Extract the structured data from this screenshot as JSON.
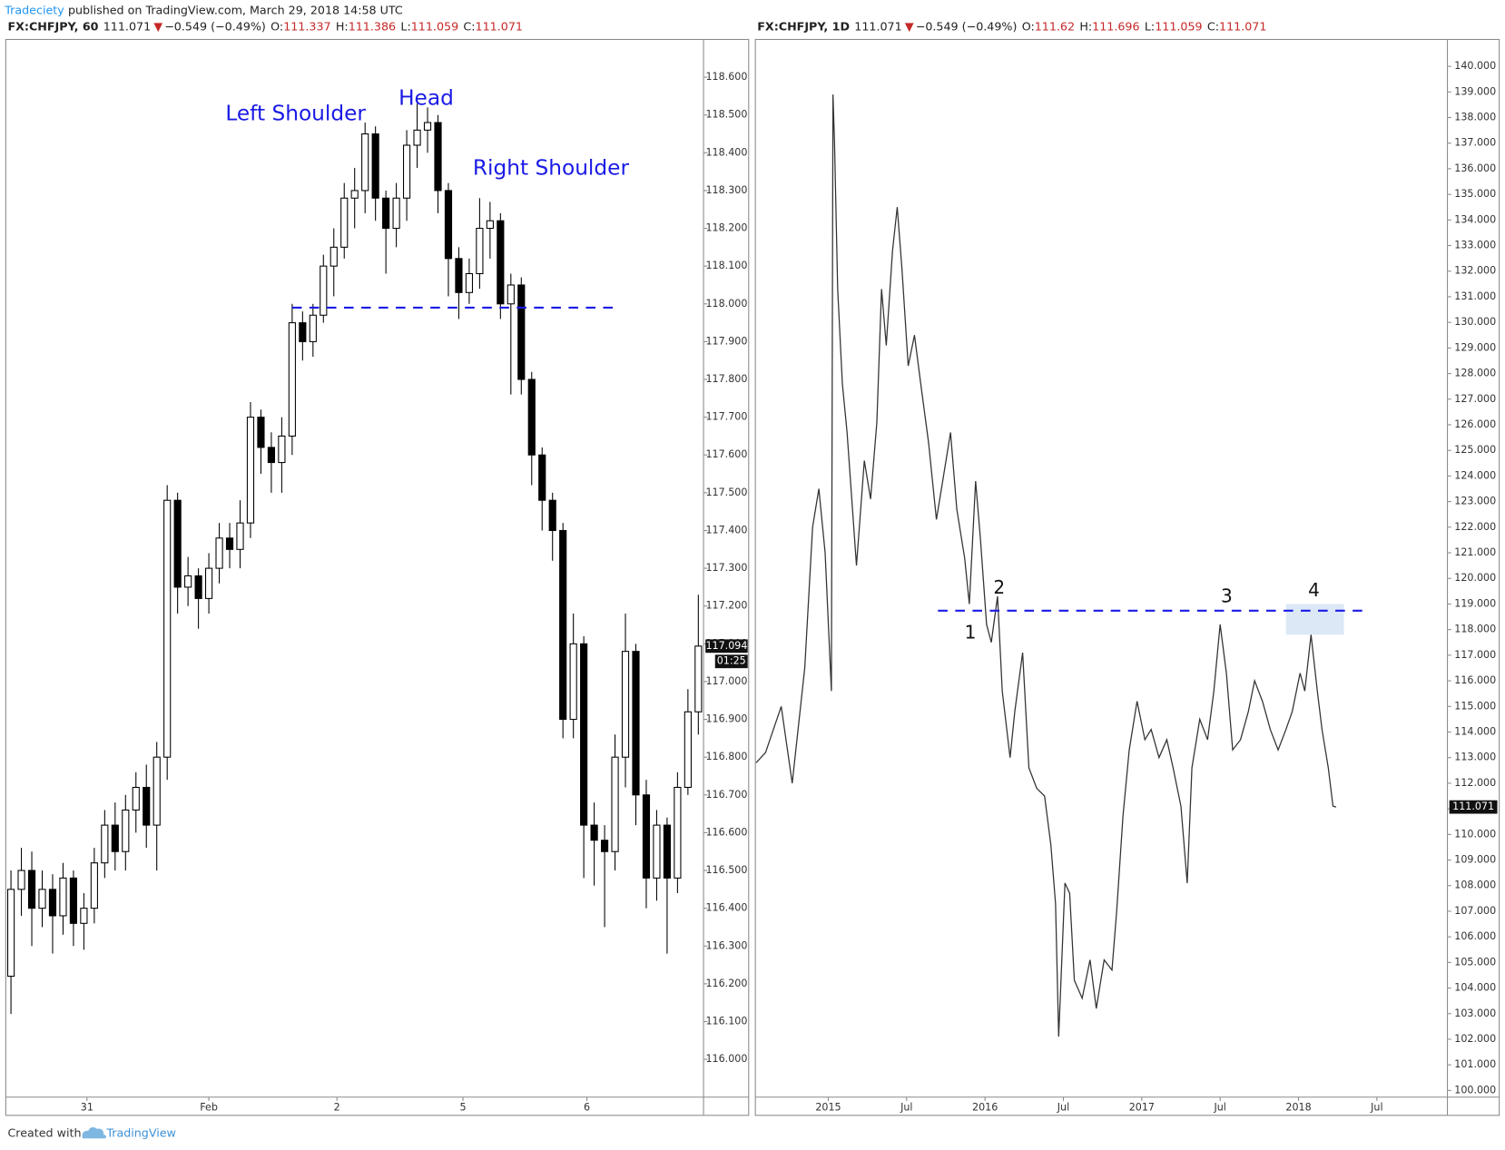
{
  "header": {
    "author": "Tradeciety",
    "text": "published on TradingView.com, March 29, 2018 14:58 UTC"
  },
  "footer": {
    "text": "Created with",
    "brand": "TradingView"
  },
  "chart_data": [
    {
      "type": "candlestick",
      "legend": {
        "symbol": "FX:CHFJPY, 60",
        "price": "111.071",
        "direction": "▼",
        "change": "−0.549 (−0.49%)",
        "ohlc": [
          {
            "label": "O:",
            "value": 111.337
          },
          {
            "label": "H:",
            "value": 111.386
          },
          {
            "label": "L:",
            "value": 111.059
          },
          {
            "label": "C:",
            "value": 111.071
          }
        ]
      },
      "annotations": [
        "Left Shoulder",
        "Head",
        "Right Shoulder"
      ],
      "neckline": {
        "value": 117.99,
        "x": [
          27,
          58
        ]
      },
      "countdown": "01:25",
      "xlim": [
        -0.5,
        66.5
      ],
      "xticks": [
        {
          "value": 7.3,
          "label": "31"
        },
        {
          "value": 19.0,
          "label": "Feb"
        },
        {
          "value": 31.3,
          "label": "2"
        },
        {
          "value": 43.4,
          "label": "5"
        },
        {
          "value": 55.3,
          "label": "6"
        }
      ],
      "ylim": [
        115.9,
        118.7
      ],
      "yticks": [
        {
          "value": 116.0,
          "label": "116.000"
        },
        {
          "value": 116.1,
          "label": "116.100"
        },
        {
          "value": 116.2,
          "label": "116.200"
        },
        {
          "value": 116.3,
          "label": "116.300"
        },
        {
          "value": 116.4,
          "label": "116.400"
        },
        {
          "value": 116.5,
          "label": "116.500"
        },
        {
          "value": 116.6,
          "label": "116.600"
        },
        {
          "value": 116.7,
          "label": "116.700"
        },
        {
          "value": 116.8,
          "label": "116.800"
        },
        {
          "value": 116.9,
          "label": "116.900"
        },
        {
          "value": 117.0,
          "label": "117.000"
        },
        {
          "value": 117.1,
          "label": "117.100"
        },
        {
          "value": 117.2,
          "label": "117.200"
        },
        {
          "value": 117.3,
          "label": "117.300"
        },
        {
          "value": 117.4,
          "label": "117.400"
        },
        {
          "value": 117.5,
          "label": "117.500"
        },
        {
          "value": 117.6,
          "label": "117.600"
        },
        {
          "value": 117.7,
          "label": "117.700"
        },
        {
          "value": 117.8,
          "label": "117.800"
        },
        {
          "value": 117.9,
          "label": "117.900"
        },
        {
          "value": 118.0,
          "label": "118.000"
        },
        {
          "value": 118.1,
          "label": "118.100"
        },
        {
          "value": 118.2,
          "label": "118.200"
        },
        {
          "value": 118.3,
          "label": "118.300"
        },
        {
          "value": 118.4,
          "label": "118.400"
        },
        {
          "value": 118.5,
          "label": "118.500"
        },
        {
          "value": 118.6,
          "label": "118.600"
        }
      ],
      "up_color": "#ffffff",
      "down_color": "#000000",
      "annotation_color": "#1a1ae6",
      "opens": [
        116.22,
        116.45,
        116.5,
        116.4,
        116.45,
        116.38,
        116.48,
        116.36,
        116.4,
        116.52,
        116.62,
        116.55,
        116.66,
        116.72,
        116.62,
        116.8,
        117.48,
        117.25,
        117.28,
        117.22,
        117.3,
        117.38,
        117.35,
        117.42,
        117.7,
        117.62,
        117.58,
        117.65,
        117.95,
        117.9,
        117.97,
        118.1,
        118.15,
        118.28,
        118.3,
        118.45,
        118.28,
        118.2,
        118.28,
        118.42,
        118.46,
        118.48,
        118.3,
        118.12,
        118.03,
        118.08,
        118.2,
        118.22,
        118.0,
        118.05,
        117.8,
        117.6,
        117.48,
        117.4,
        116.9,
        117.1,
        116.62,
        116.58,
        116.55,
        116.8,
        117.08,
        116.7,
        116.48,
        116.62,
        116.48,
        116.72,
        116.92
      ],
      "highs": [
        116.5,
        116.56,
        116.55,
        116.5,
        116.49,
        116.52,
        116.5,
        116.44,
        116.56,
        116.66,
        116.68,
        116.7,
        116.76,
        116.78,
        116.84,
        117.52,
        117.5,
        117.33,
        117.3,
        117.34,
        117.42,
        117.42,
        117.48,
        117.74,
        117.72,
        117.66,
        117.7,
        118.0,
        117.98,
        118.0,
        118.13,
        118.2,
        118.32,
        118.36,
        118.48,
        118.47,
        118.3,
        118.32,
        118.46,
        118.53,
        118.52,
        118.5,
        118.32,
        118.15,
        118.12,
        118.28,
        118.27,
        118.24,
        118.08,
        118.07,
        117.82,
        117.62,
        117.5,
        117.42,
        117.18,
        117.12,
        116.68,
        116.62,
        116.86,
        117.18,
        117.1,
        116.74,
        116.66,
        116.64,
        116.76,
        116.98,
        117.23
      ],
      "lows": [
        116.12,
        116.38,
        116.3,
        116.35,
        116.28,
        116.33,
        116.3,
        116.29,
        116.36,
        116.48,
        116.5,
        116.5,
        116.6,
        116.56,
        116.5,
        116.74,
        117.18,
        117.2,
        117.14,
        117.18,
        117.26,
        117.3,
        117.3,
        117.38,
        117.55,
        117.5,
        117.5,
        117.6,
        117.85,
        117.86,
        117.95,
        118.02,
        118.12,
        118.2,
        118.24,
        118.22,
        118.08,
        118.15,
        118.22,
        118.36,
        118.4,
        118.24,
        118.02,
        117.96,
        118.0,
        118.04,
        118.12,
        117.96,
        117.76,
        117.76,
        117.52,
        117.4,
        117.32,
        116.85,
        116.85,
        116.48,
        116.46,
        116.35,
        116.5,
        116.72,
        116.62,
        116.4,
        116.42,
        116.28,
        116.44,
        116.7,
        116.86
      ],
      "closes": [
        116.45,
        116.5,
        116.4,
        116.45,
        116.38,
        116.48,
        116.36,
        116.4,
        116.52,
        116.62,
        116.55,
        116.66,
        116.72,
        116.62,
        116.8,
        117.48,
        117.25,
        117.28,
        117.22,
        117.3,
        117.38,
        117.35,
        117.42,
        117.7,
        117.62,
        117.58,
        117.65,
        117.95,
        117.9,
        117.97,
        118.1,
        118.15,
        118.28,
        118.3,
        118.45,
        118.28,
        118.2,
        118.28,
        118.42,
        118.46,
        118.48,
        118.3,
        118.12,
        118.03,
        118.08,
        118.2,
        118.22,
        118.0,
        118.05,
        117.8,
        117.6,
        117.48,
        117.4,
        116.9,
        117.1,
        116.62,
        116.58,
        116.55,
        116.8,
        117.08,
        116.7,
        116.48,
        116.62,
        116.48,
        116.72,
        116.92,
        117.094
      ]
    },
    {
      "type": "line",
      "legend": {
        "symbol": "FX:CHFJPY, 1D",
        "price": "111.071",
        "direction": "▼",
        "change": "−0.549 (−0.49%)",
        "ohlc": [
          {
            "label": "O:",
            "value": 111.62
          },
          {
            "label": "H:",
            "value": 111.696
          },
          {
            "label": "L:",
            "value": 111.059
          },
          {
            "label": "C:",
            "value": 111.071
          }
        ]
      },
      "annotations": [
        "1",
        "2",
        "3",
        "4"
      ],
      "resistance": {
        "value": 118.74,
        "x": [
          2015.7,
          2018.42
        ]
      },
      "zone": {
        "top": 119.0,
        "bottom": 117.8,
        "x": [
          2017.92,
          2018.29
        ]
      },
      "color": "#333333",
      "zone_color": "#dce8f5",
      "xlim": [
        2014.535,
        2018.95
      ],
      "xticks": [
        2015,
        {
          "value": 2015.5,
          "label": "Jul"
        },
        2016,
        {
          "value": 2016.5,
          "label": "Jul"
        },
        2017,
        {
          "value": 2017.5,
          "label": "Jul"
        },
        2018,
        {
          "value": 2018.5,
          "label": "Jul"
        }
      ],
      "ylim": [
        99.74,
        141.05
      ],
      "yticks": [
        {
          "value": 100,
          "label": "100.000"
        },
        {
          "value": 101,
          "label": "101.000"
        },
        {
          "value": 102,
          "label": "102.000"
        },
        {
          "value": 103,
          "label": "103.000"
        },
        {
          "value": 104,
          "label": "104.000"
        },
        {
          "value": 105,
          "label": "105.000"
        },
        {
          "value": 106,
          "label": "106.000"
        },
        {
          "value": 107,
          "label": "107.000"
        },
        {
          "value": 108,
          "label": "108.000"
        },
        {
          "value": 109,
          "label": "109.000"
        },
        {
          "value": 110,
          "label": "110.000"
        },
        {
          "value": 111,
          "label": "111.000"
        },
        {
          "value": 112,
          "label": "112.000"
        },
        {
          "value": 113,
          "label": "113.000"
        },
        {
          "value": 114,
          "label": "114.000"
        },
        {
          "value": 115,
          "label": "115.000"
        },
        {
          "value": 116,
          "label": "116.000"
        },
        {
          "value": 117,
          "label": "117.000"
        },
        {
          "value": 118,
          "label": "118.000"
        },
        {
          "value": 119,
          "label": "119.000"
        },
        {
          "value": 120,
          "label": "120.000"
        },
        {
          "value": 121,
          "label": "121.000"
        },
        {
          "value": 122,
          "label": "122.000"
        },
        {
          "value": 123,
          "label": "123.000"
        },
        {
          "value": 124,
          "label": "124.000"
        },
        {
          "value": 125,
          "label": "125.000"
        },
        {
          "value": 126,
          "label": "126.000"
        },
        {
          "value": 127,
          "label": "127.000"
        },
        {
          "value": 128,
          "label": "128.000"
        },
        {
          "value": 129,
          "label": "129.000"
        },
        {
          "value": 130,
          "label": "130.000"
        },
        {
          "value": 131,
          "label": "131.000"
        },
        {
          "value": 132,
          "label": "132.000"
        },
        {
          "value": 133,
          "label": "133.000"
        },
        {
          "value": 134,
          "label": "134.000"
        },
        {
          "value": 135,
          "label": "135.000"
        },
        {
          "value": 136,
          "label": "136.000"
        },
        {
          "value": 137,
          "label": "137.000"
        },
        {
          "value": 138,
          "label": "138.000"
        },
        {
          "value": 139,
          "label": "139.000"
        },
        {
          "value": 140,
          "label": "140.000"
        }
      ],
      "x": [
        2014.54,
        2014.6,
        2014.7,
        2014.77,
        2014.85,
        2014.9,
        2014.94,
        2014.98,
        2015.02,
        2015.03,
        2015.04,
        2015.06,
        2015.09,
        2015.12,
        2015.15,
        2015.18,
        2015.23,
        2015.27,
        2015.31,
        2015.34,
        2015.37,
        2015.41,
        2015.44,
        2015.47,
        2015.51,
        2015.55,
        2015.59,
        2015.64,
        2015.69,
        2015.73,
        2015.78,
        2015.82,
        2015.87,
        2015.9,
        2015.94,
        2015.97,
        2016.01,
        2016.04,
        2016.08,
        2016.11,
        2016.16,
        2016.19,
        2016.24,
        2016.28,
        2016.33,
        2016.38,
        2016.42,
        2016.45,
        2016.47,
        2016.51,
        2016.54,
        2016.57,
        2016.62,
        2016.67,
        2016.71,
        2016.76,
        2016.81,
        2016.84,
        2016.88,
        2016.92,
        2016.97,
        2017.02,
        2017.06,
        2017.11,
        2017.16,
        2017.2,
        2017.25,
        2017.29,
        2017.32,
        2017.37,
        2017.42,
        2017.46,
        2017.5,
        2017.54,
        2017.58,
        2017.63,
        2017.68,
        2017.72,
        2017.77,
        2017.82,
        2017.87,
        2017.92,
        2017.96,
        2018.01,
        2018.04,
        2018.08,
        2018.12,
        2018.15,
        2018.19,
        2018.22,
        2018.24
      ],
      "values": [
        112.8,
        113.2,
        115.0,
        112.0,
        116.5,
        122.0,
        123.5,
        121.0,
        115.6,
        138.9,
        137.0,
        131.3,
        127.6,
        125.7,
        123.1,
        120.5,
        124.6,
        123.1,
        126.1,
        131.3,
        129.1,
        132.8,
        134.5,
        132.1,
        128.3,
        129.5,
        127.6,
        125.3,
        122.3,
        123.8,
        125.7,
        122.7,
        120.8,
        119.0,
        123.8,
        121.6,
        118.2,
        117.5,
        119.3,
        115.6,
        113.0,
        114.8,
        117.1,
        112.6,
        111.8,
        111.5,
        109.6,
        107.3,
        102.1,
        108.1,
        107.7,
        104.3,
        103.6,
        105.1,
        103.2,
        105.1,
        104.7,
        107.0,
        110.7,
        113.3,
        115.2,
        113.7,
        114.1,
        113.0,
        113.7,
        112.6,
        111.1,
        108.1,
        112.6,
        114.5,
        113.7,
        115.6,
        118.2,
        116.3,
        113.3,
        113.7,
        114.8,
        116.0,
        115.2,
        114.1,
        113.3,
        114.1,
        114.8,
        116.3,
        115.6,
        117.8,
        115.6,
        114.1,
        112.6,
        111.1,
        111.071
      ]
    }
  ]
}
